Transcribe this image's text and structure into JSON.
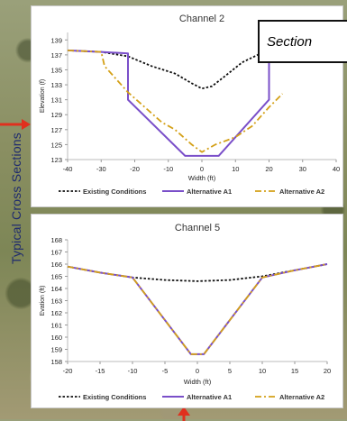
{
  "side_label": "Typical Cross Sections",
  "callout_text": "Section",
  "colors": {
    "existing": "#111111",
    "alt_a1": "#7a4fc9",
    "alt_a2": "#d4a017",
    "arrow": "#e0301e",
    "side_label": "#1e2a6e"
  },
  "chart_data": [
    {
      "type": "line",
      "title": "Channel 2",
      "xlabel": "Width (ft)",
      "ylabel": "Elevation (f)",
      "xlim": [
        -40,
        40
      ],
      "ylim": [
        123,
        140
      ],
      "xticks": [
        -40,
        -30,
        -20,
        -10,
        0,
        10,
        20,
        30,
        40
      ],
      "yticks": [
        123,
        125,
        127,
        129,
        131,
        133,
        135,
        137,
        139
      ],
      "grid": false,
      "legend": "bottom",
      "series": [
        {
          "name": "Existing Conditions",
          "style": "dotted",
          "color": "#111111",
          "x": [
            -40,
            -30,
            -22,
            -15,
            -8,
            -3,
            0,
            3,
            7,
            12,
            18,
            25,
            30,
            40
          ],
          "y": [
            137.6,
            137.4,
            136.8,
            135.5,
            134.5,
            133.2,
            132.5,
            132.8,
            134.2,
            136.0,
            137.3,
            137.6,
            137.7,
            137.8
          ]
        },
        {
          "name": "Alternative A1",
          "style": "solid",
          "color": "#7a4fc9",
          "x": [
            -40,
            -30,
            -22,
            -22,
            -5,
            5,
            20,
            20,
            30,
            40
          ],
          "y": [
            137.6,
            137.4,
            137.2,
            131.0,
            123.5,
            123.5,
            131.0,
            137.8,
            137.8,
            137.8
          ]
        },
        {
          "name": "Alternative A2",
          "style": "dashdot",
          "color": "#d4a017",
          "x": [
            -40,
            -30,
            -29,
            -22,
            -17,
            -12,
            -8,
            -3,
            0,
            4,
            10,
            15,
            20,
            24
          ],
          "y": [
            137.6,
            137.4,
            135.5,
            132.0,
            130.0,
            128.0,
            127.0,
            125.0,
            124.0,
            125.0,
            126.0,
            127.5,
            130.0,
            131.8
          ]
        }
      ]
    },
    {
      "type": "line",
      "title": "Channel 5",
      "xlabel": "Width (ft)",
      "ylabel": "Evation (ft)",
      "xlim": [
        -20,
        20
      ],
      "ylim": [
        158,
        168
      ],
      "xticks": [
        -20,
        -15,
        -10,
        -5,
        0,
        5,
        10,
        15,
        20
      ],
      "yticks": [
        158,
        159,
        160,
        161,
        162,
        163,
        164,
        165,
        166,
        167,
        168
      ],
      "grid": false,
      "legend": "bottom",
      "series": [
        {
          "name": "Existing Conditions",
          "style": "dotted",
          "color": "#111111",
          "x": [
            -20,
            -15,
            -10,
            -5,
            0,
            5,
            10,
            15,
            20
          ],
          "y": [
            165.8,
            165.3,
            164.9,
            164.7,
            164.6,
            164.7,
            165.0,
            165.5,
            166.0
          ]
        },
        {
          "name": "Alternative A1",
          "style": "solid",
          "color": "#7a4fc9",
          "x": [
            -20,
            -15,
            -10,
            -1,
            1,
            10,
            15,
            20
          ],
          "y": [
            165.8,
            165.3,
            164.9,
            158.6,
            158.6,
            164.9,
            165.5,
            166.0
          ]
        },
        {
          "name": "Alternative A2",
          "style": "dashdot",
          "color": "#d4a017",
          "x": [
            -20,
            -15,
            -10,
            -1,
            1,
            10,
            15,
            20
          ],
          "y": [
            165.8,
            165.3,
            164.9,
            158.6,
            158.6,
            164.9,
            165.5,
            166.0
          ]
        }
      ]
    }
  ]
}
